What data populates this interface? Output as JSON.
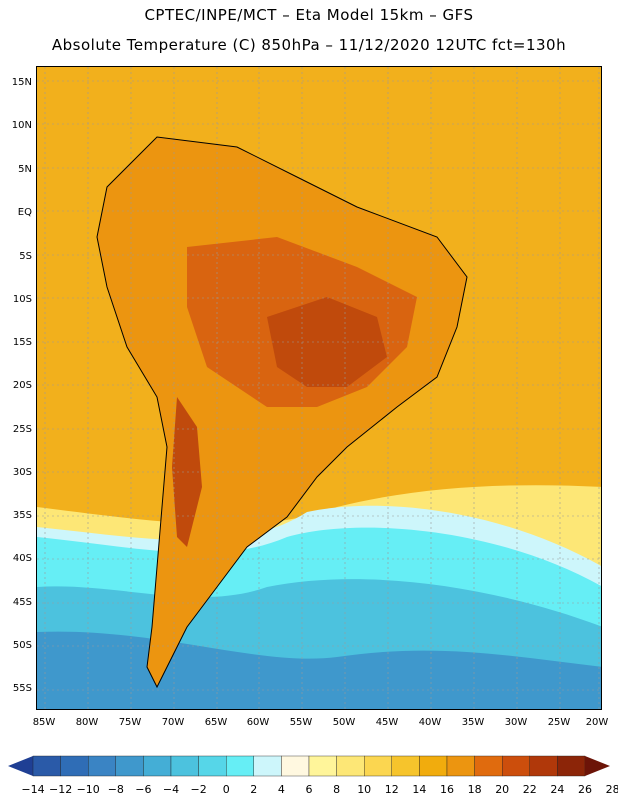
{
  "header": {
    "line1": "CPTEC/INPE/MCT –  Eta Model 15km – GFS",
    "line2": "Absolute Temperature (C) 850hPa – 11/12/2020 12UTC fct=130h"
  },
  "axes": {
    "lat_labels": [
      "15N",
      "10N",
      "5N",
      "EQ",
      "5S",
      "10S",
      "15S",
      "20S",
      "25S",
      "30S",
      "35S",
      "40S",
      "45S",
      "50S",
      "55S"
    ],
    "lon_labels": [
      "85W",
      "80W",
      "75W",
      "70W",
      "65W",
      "60W",
      "55W",
      "50W",
      "45W",
      "40W",
      "35W",
      "30W",
      "25W",
      "20W"
    ]
  },
  "colorbar": {
    "labels": [
      "-14",
      "-12",
      "-10",
      "-8",
      "-6",
      "-4",
      "-2",
      "0",
      "2",
      "4",
      "6",
      "8",
      "10",
      "12",
      "14",
      "16",
      "18",
      "20",
      "22",
      "24",
      "26",
      "28"
    ],
    "colors": [
      "#1f3f94",
      "#2a5aa8",
      "#2f6db6",
      "#3a84c4",
      "#3f98cc",
      "#44aed6",
      "#4cc2de",
      "#56d6e8",
      "#66eef5",
      "#cdf6fb",
      "#fff8e0",
      "#fff59a",
      "#fde776",
      "#fbd650",
      "#f6c42c",
      "#f1ac0d",
      "#ec9510",
      "#e06b0e",
      "#cc4e0c",
      "#b0380a",
      "#8c2508",
      "#6c1408"
    ]
  },
  "map": {
    "region": "South America",
    "colors": {
      "ocean_warm": "#f2b01c",
      "land_warm": "#ec9510",
      "land_hot": "#d96410",
      "land_hotter": "#c04a0c",
      "mid_lat": "#fde776",
      "cool_1": "#cdf6fb",
      "cool_2": "#66eef5",
      "cool_3": "#44aed6",
      "cool_4": "#3a84c4"
    }
  }
}
